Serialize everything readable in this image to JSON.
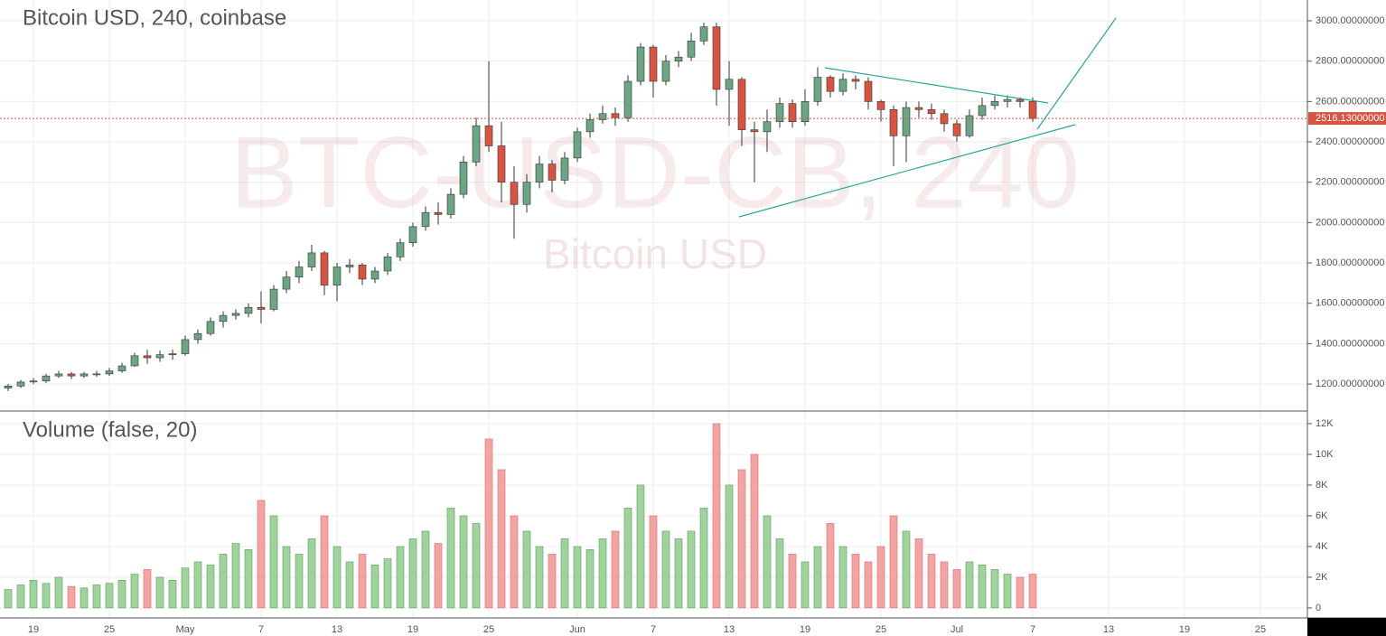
{
  "chart_data": [
    {
      "type": "candlestick",
      "title": "Bitcoin USD, 240, coinbase",
      "watermark": "BTC-USD-CB, 240",
      "watermark_subtitle": "Bitcoin USD",
      "up_color": "#6ba583",
      "down_color": "#d75442",
      "categories": [
        null,
        null,
        "19",
        null,
        null,
        null,
        null,
        null,
        "25",
        null,
        null,
        null,
        null,
        null,
        "May",
        null,
        null,
        null,
        null,
        null,
        "7",
        null,
        null,
        null,
        null,
        null,
        "13",
        null,
        null,
        null,
        null,
        null,
        "19",
        null,
        null,
        null,
        null,
        null,
        "25",
        null,
        null,
        null,
        null,
        null,
        null,
        "Jun",
        null,
        null,
        null,
        null,
        null,
        "7",
        null,
        null,
        null,
        null,
        null,
        "13",
        null,
        null,
        null,
        null,
        null,
        "19",
        null,
        null,
        null,
        null,
        null,
        "25",
        null,
        null,
        null,
        null,
        null,
        "Jul",
        null,
        null,
        null,
        null,
        null,
        "7",
        null,
        null,
        null,
        null,
        null,
        "13",
        null,
        null,
        null,
        null,
        null,
        "19",
        null,
        null,
        null,
        null,
        null,
        "25",
        null,
        null
      ],
      "open": [
        1180,
        1190,
        1210,
        1215,
        1240,
        1250,
        1240,
        1250,
        1250,
        1265,
        1290,
        1340,
        1330,
        1345,
        1350,
        1420,
        1450,
        1510,
        1540,
        1550,
        1580,
        1570,
        1670,
        1730,
        1780,
        1850,
        1690,
        1780,
        1790,
        1720,
        1760,
        1830,
        1900,
        1980,
        2050,
        2040,
        2140,
        2300,
        2480,
        2380,
        2200,
        2090,
        2200,
        2290,
        2210,
        2320,
        2450,
        2510,
        2540,
        2520,
        2700,
        2870,
        2700,
        2800,
        2820,
        2900,
        2970,
        2660,
        2710,
        2460,
        2450,
        2500,
        2590,
        2500,
        2600,
        2720,
        2650,
        2710,
        2700,
        2600,
        2560,
        2430,
        2570,
        2560,
        2540,
        2490,
        2430,
        2530,
        2580,
        2600,
        2610,
        2600,
        null,
        null,
        null,
        null,
        null,
        null,
        null,
        null,
        null,
        null,
        null,
        null,
        null,
        null,
        null,
        null,
        null,
        null,
        null,
        null
      ],
      "high": [
        1200,
        1220,
        1230,
        1250,
        1265,
        1260,
        1260,
        1265,
        1280,
        1305,
        1355,
        1370,
        1365,
        1370,
        1440,
        1470,
        1530,
        1560,
        1570,
        1600,
        1660,
        1690,
        1760,
        1810,
        1890,
        1860,
        1800,
        1820,
        1800,
        1780,
        1850,
        1920,
        2000,
        2080,
        2100,
        2170,
        2330,
        2520,
        2800,
        2500,
        2280,
        2240,
        2330,
        2310,
        2350,
        2470,
        2540,
        2580,
        2570,
        2730,
        2890,
        2880,
        2830,
        2850,
        2940,
        2990,
        2990,
        2800,
        2720,
        2500,
        2560,
        2620,
        2610,
        2660,
        2770,
        2730,
        2740,
        2730,
        2720,
        2610,
        2580,
        2600,
        2600,
        2590,
        2560,
        2510,
        2560,
        2620,
        2630,
        2630,
        2620,
        2620,
        null,
        null,
        null,
        null,
        null,
        null,
        null,
        null,
        null,
        null,
        null,
        null,
        null,
        null,
        null,
        null,
        null,
        null,
        null,
        null
      ],
      "low": [
        1165,
        1180,
        1200,
        1205,
        1230,
        1225,
        1230,
        1235,
        1240,
        1255,
        1285,
        1300,
        1310,
        1320,
        1340,
        1400,
        1440,
        1480,
        1520,
        1530,
        1500,
        1560,
        1650,
        1700,
        1760,
        1640,
        1610,
        1750,
        1690,
        1700,
        1740,
        1810,
        1880,
        1960,
        1990,
        2020,
        2120,
        2280,
        2350,
        2100,
        1920,
        2050,
        2170,
        2150,
        2190,
        2300,
        2420,
        2490,
        2480,
        2500,
        2680,
        2620,
        2680,
        2770,
        2800,
        2880,
        2580,
        2480,
        2380,
        2200,
        2350,
        2470,
        2470,
        2480,
        2580,
        2620,
        2630,
        2660,
        2560,
        2500,
        2280,
        2300,
        2520,
        2510,
        2450,
        2400,
        2420,
        2510,
        2560,
        2570,
        2570,
        2500,
        null,
        null,
        null,
        null,
        null,
        null,
        null,
        null,
        null,
        null,
        null,
        null,
        null,
        null,
        null,
        null,
        null,
        null,
        null,
        null
      ],
      "close": [
        1190,
        1210,
        1215,
        1240,
        1250,
        1240,
        1250,
        1250,
        1265,
        1290,
        1340,
        1330,
        1345,
        1350,
        1420,
        1450,
        1510,
        1540,
        1550,
        1580,
        1570,
        1670,
        1730,
        1780,
        1850,
        1690,
        1780,
        1790,
        1720,
        1760,
        1830,
        1900,
        1980,
        2050,
        2040,
        2140,
        2300,
        2480,
        2380,
        2200,
        2090,
        2200,
        2290,
        2210,
        2320,
        2450,
        2510,
        2540,
        2520,
        2700,
        2870,
        2700,
        2800,
        2820,
        2900,
        2970,
        2660,
        2710,
        2460,
        2450,
        2500,
        2590,
        2500,
        2600,
        2720,
        2650,
        2710,
        2700,
        2600,
        2560,
        2430,
        2570,
        2560,
        2540,
        2490,
        2430,
        2530,
        2580,
        2600,
        2610,
        2600,
        2516,
        null,
        null,
        null,
        null,
        null,
        null,
        null,
        null,
        null,
        null,
        null,
        null,
        null,
        null,
        null,
        null,
        null,
        null,
        null,
        null
      ],
      "last_value": 2516.13,
      "last_label": "2516.13000000",
      "last_color": "#d75442",
      "ylim": [
        1066,
        3103
      ],
      "grid": true,
      "yticks": [
        {
          "value": 1200,
          "label": "1200.00000000"
        },
        {
          "value": 1400,
          "label": "1400.00000000"
        },
        {
          "value": 1600,
          "label": "1600.00000000"
        },
        {
          "value": 1800,
          "label": "1800.00000000"
        },
        {
          "value": 2000,
          "label": "2000.00000000"
        },
        {
          "value": 2200,
          "label": "2200.00000000"
        },
        {
          "value": 2400,
          "label": "2400.00000000"
        },
        {
          "value": 2600,
          "label": "2600.00000000"
        },
        {
          "value": 2800,
          "label": "2800.00000000"
        },
        {
          "value": 3000,
          "label": "3000.00000000"
        }
      ]
    },
    {
      "type": "bar",
      "title": "Volume (false, 20)",
      "up_color": "#9fd29d",
      "down_color": "#f4a3a3",
      "values": [
        1200,
        1500,
        1800,
        1600,
        2000,
        1400,
        1300,
        1500,
        1600,
        1800,
        2200,
        2500,
        2000,
        1800,
        2600,
        3000,
        2800,
        3500,
        4200,
        3800,
        7000,
        6000,
        4000,
        3500,
        4500,
        6000,
        4000,
        3000,
        3500,
        2800,
        3200,
        4000,
        4500,
        5000,
        4200,
        6500,
        6000,
        5500,
        11000,
        9000,
        6000,
        5000,
        4000,
        3500,
        4500,
        4000,
        3800,
        4500,
        5000,
        6500,
        8000,
        6000,
        5000,
        4500,
        5000,
        6500,
        12000,
        8000,
        9000,
        10000,
        6000,
        4500,
        3500,
        3000,
        4000,
        5500,
        4000,
        3500,
        3000,
        4000,
        6000,
        5000,
        4500,
        3500,
        3000,
        2500,
        3000,
        2800,
        2500,
        2200,
        2000,
        2200,
        null,
        null,
        null,
        null,
        null,
        null,
        null,
        null,
        null,
        null,
        null,
        null,
        null,
        null,
        null,
        null,
        null,
        null,
        null,
        null
      ],
      "ylim": [
        -650,
        12820
      ],
      "grid": true,
      "yticks": [
        0,
        {
          "value": 2000,
          "label": "2K"
        },
        {
          "value": 4000,
          "label": "4K"
        },
        {
          "value": 6000,
          "label": "6K"
        },
        {
          "value": 8000,
          "label": "8K"
        },
        {
          "value": 10000,
          "label": "10K"
        },
        {
          "value": 12000,
          "label": "12K"
        }
      ]
    }
  ]
}
